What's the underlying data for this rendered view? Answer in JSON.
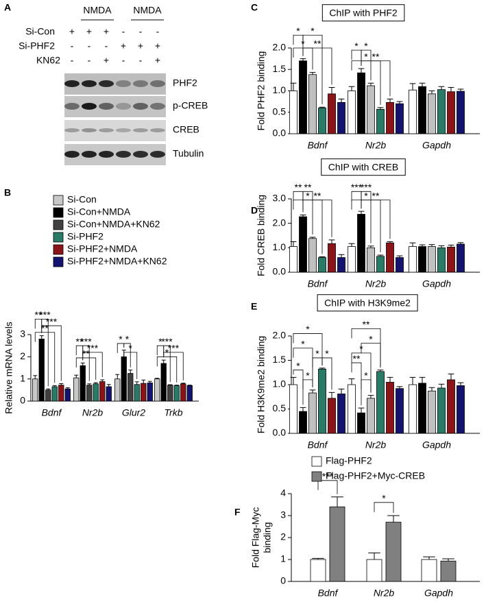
{
  "blot": {
    "panel": "A",
    "headers": [
      "NMDA",
      "NMDA"
    ],
    "rows": [
      {
        "label": "Si-Con",
        "signs": [
          "+",
          "+",
          "+",
          "-",
          "-",
          "-"
        ]
      },
      {
        "label": "Si-PHF2",
        "signs": [
          "-",
          "-",
          "-",
          "+",
          "+",
          "+"
        ]
      },
      {
        "label": "KN62",
        "signs": [
          "-",
          "-",
          "+",
          "-",
          "-",
          "+"
        ]
      }
    ],
    "bands": [
      "PHF2",
      "p-CREB",
      "CREB",
      "Tubulin"
    ]
  },
  "chart_data": [
    {
      "type": "bar",
      "panel": "B",
      "ylabel": "Relative mRNA levels",
      "categories": [
        "Bdnf",
        "Nr2b",
        "Glur2",
        "Trkb"
      ],
      "ylim": [
        0,
        3
      ],
      "yticks": [
        0,
        1,
        2,
        3
      ],
      "series": [
        {
          "name": "Si-Con",
          "color": "#c8c8c8",
          "values": [
            1.0,
            1.05,
            1.0,
            1.0
          ],
          "errors": [
            0.15,
            0.12,
            0.2,
            0.03
          ]
        },
        {
          "name": "Si-Con+NMDA",
          "color": "#000000",
          "values": [
            2.8,
            1.6,
            2.0,
            1.7
          ],
          "errors": [
            0.15,
            0.12,
            0.3,
            0.15
          ]
        },
        {
          "name": "Si-Con+NMDA+KN62",
          "color": "#404040",
          "values": [
            0.5,
            0.72,
            1.25,
            0.72
          ],
          "errors": [
            0.05,
            0.06,
            0.15,
            0.02
          ]
        },
        {
          "name": "Si-PHF2",
          "color": "#2a7a68",
          "values": [
            0.65,
            0.78,
            0.75,
            0.7
          ],
          "errors": [
            0.05,
            0.05,
            0.12,
            0.02
          ]
        },
        {
          "name": "Si-PHF2+NMDA",
          "color": "#8b1418",
          "values": [
            0.72,
            0.88,
            0.8,
            0.78
          ],
          "errors": [
            0.07,
            0.08,
            0.15,
            0.03
          ]
        },
        {
          "name": "Si-PHF2+NMDA+KN62",
          "color": "#14146e",
          "values": [
            0.55,
            0.65,
            0.82,
            0.7
          ],
          "errors": [
            0.05,
            0.1,
            0.07,
            0.02
          ]
        }
      ],
      "annotations": [
        "**",
        "***",
        "***",
        "**",
        "**",
        "***",
        "**",
        "***",
        "*",
        "*",
        "*",
        "*",
        "***",
        "*",
        "***"
      ]
    },
    {
      "type": "bar",
      "panel": "C",
      "title": "ChIP with PHF2",
      "ylabel": "Fold PHF2 binding",
      "categories": [
        "Bdnf",
        "Nr2b",
        "Gapdh"
      ],
      "ylim": [
        0,
        2
      ],
      "yticks": [
        {
          "value": 0,
          "label": "0.0"
        },
        {
          "value": 0.5,
          "label": "0.5"
        },
        {
          "value": 1,
          "label": "1.0"
        },
        {
          "value": 1.5,
          "label": "1.5"
        },
        {
          "value": 2,
          "label": "2.0"
        }
      ],
      "series": [
        {
          "color": "#ffffff",
          "values": [
            1.0,
            1.0,
            1.02
          ],
          "errors": [
            0.18,
            0.1,
            0.15
          ]
        },
        {
          "color": "#000000",
          "values": [
            1.7,
            1.42,
            1.1
          ],
          "errors": [
            0.05,
            0.1,
            0.08
          ]
        },
        {
          "color": "#c0c0c0",
          "values": [
            1.38,
            1.12,
            0.93
          ],
          "errors": [
            0.05,
            0.06,
            0.07
          ]
        },
        {
          "color": "#2a7a68",
          "values": [
            0.6,
            0.57,
            1.03
          ],
          "errors": [
            0.02,
            0.04,
            0.07
          ]
        },
        {
          "color": "#8b1418",
          "values": [
            0.93,
            0.73,
            0.98
          ],
          "errors": [
            0.15,
            0.08,
            0.1
          ]
        },
        {
          "color": "#14146e",
          "values": [
            0.73,
            0.7,
            0.99
          ],
          "errors": [
            0.08,
            0.05,
            0.05
          ]
        }
      ],
      "annotations": [
        "*",
        "*",
        "*",
        "**",
        "*",
        "*",
        "*",
        "**"
      ]
    },
    {
      "type": "bar",
      "panel": "D",
      "title": "ChIP with CREB",
      "ylabel": "Fold CREB binding",
      "categories": [
        "Bdnf",
        "Nr2b",
        "Gapdh"
      ],
      "ylim": [
        0,
        3
      ],
      "yticks": [
        {
          "value": 0,
          "label": "0.0"
        },
        {
          "value": 1,
          "label": "1.0"
        },
        {
          "value": 2,
          "label": "2.0"
        },
        {
          "value": 3,
          "label": "3.0"
        }
      ],
      "series": [
        {
          "color": "#ffffff",
          "values": [
            1.05,
            1.05,
            1.05
          ],
          "errors": [
            0.2,
            0.12,
            0.15
          ]
        },
        {
          "color": "#000000",
          "values": [
            2.27,
            2.37,
            1.05
          ],
          "errors": [
            0.07,
            0.12,
            0.07
          ]
        },
        {
          "color": "#c0c0c0",
          "values": [
            1.38,
            1.0,
            1.05
          ],
          "errors": [
            0.05,
            0.07,
            0.08
          ]
        },
        {
          "color": "#2a7a68",
          "values": [
            0.6,
            0.65,
            1.0
          ],
          "errors": [
            0.03,
            0.05,
            0.08
          ]
        },
        {
          "color": "#8b1418",
          "values": [
            1.17,
            1.2,
            1.03
          ],
          "errors": [
            0.15,
            0.05,
            0.08
          ]
        },
        {
          "color": "#14146e",
          "values": [
            0.6,
            0.6,
            1.15
          ],
          "errors": [
            0.12,
            0.07,
            0.06
          ]
        }
      ],
      "annotations": [
        "**",
        "**",
        "*",
        "**",
        "***",
        "***",
        "*",
        "**"
      ]
    },
    {
      "type": "bar",
      "panel": "E",
      "title": "ChIP with H3K9me2",
      "ylabel": "Fold H3K9me2 binding",
      "categories": [
        "Bdnf",
        "Nr2b",
        "Gapdh"
      ],
      "ylim": [
        0,
        2
      ],
      "yticks": [
        {
          "value": 0,
          "label": "0.0"
        },
        {
          "value": 0.5,
          "label": "0.5"
        },
        {
          "value": 1,
          "label": "1.0"
        },
        {
          "value": 1.5,
          "label": "1.5"
        },
        {
          "value": 2,
          "label": "2.0"
        }
      ],
      "series": [
        {
          "color": "#ffffff",
          "values": [
            1.0,
            1.0,
            1.0
          ],
          "errors": [
            0.15,
            0.12,
            0.15
          ]
        },
        {
          "color": "#000000",
          "values": [
            0.45,
            0.42,
            1.03
          ],
          "errors": [
            0.08,
            0.1,
            0.12
          ]
        },
        {
          "color": "#c0c0c0",
          "values": [
            0.83,
            0.72,
            0.87
          ],
          "errors": [
            0.06,
            0.06,
            0.07
          ]
        },
        {
          "color": "#2a7a68",
          "values": [
            1.32,
            1.27,
            0.93
          ],
          "errors": [
            0.02,
            0.03,
            0.08
          ]
        },
        {
          "color": "#8b1418",
          "values": [
            0.72,
            1.05,
            1.1
          ],
          "errors": [
            0.12,
            0.1,
            0.12
          ]
        },
        {
          "color": "#14146e",
          "values": [
            0.81,
            0.92,
            0.98
          ],
          "errors": [
            0.1,
            0.04,
            0.06
          ]
        }
      ],
      "annotations": [
        "*",
        "*",
        "*",
        "*",
        "*",
        "*",
        "**",
        "*",
        "*",
        "*",
        "**"
      ]
    },
    {
      "type": "bar",
      "panel": "F",
      "ylabel": [
        "Fold Flag-Myc",
        "binding"
      ],
      "categories": [
        "Bdnf",
        "Nr2b",
        "Gapdh"
      ],
      "ylim": [
        0,
        4
      ],
      "yticks": [
        0,
        1,
        2,
        3,
        4
      ],
      "series": [
        {
          "name": "Flag-PHF2",
          "color": "#ffffff",
          "values": [
            1.0,
            1.0,
            1.0
          ],
          "errors": [
            0.05,
            0.3,
            0.12
          ]
        },
        {
          "name": "Flag-PHF2+Myc-CREB",
          "color": "#808080",
          "values": [
            3.4,
            2.7,
            0.93
          ],
          "errors": [
            0.45,
            0.3,
            0.1
          ]
        }
      ],
      "annotations": [
        "***",
        "*"
      ]
    }
  ]
}
